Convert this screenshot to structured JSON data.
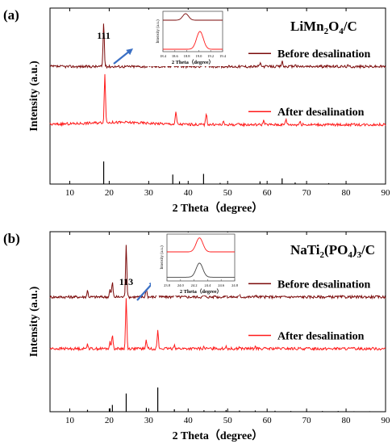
{
  "chart_data": [
    {
      "type": "line",
      "panel_label": "(a)",
      "title": "LiMn2O4/C",
      "title_parts": [
        [
          "LiMn",
          false
        ],
        [
          "2",
          true
        ],
        [
          "O",
          false
        ],
        [
          "4",
          true
        ],
        [
          "/C",
          false
        ]
      ],
      "xlabel": "2 Theta（degree）",
      "ylabel": "Intensity (a.u.)",
      "xlim": [
        5,
        90
      ],
      "x_ticks": [
        "10",
        "20",
        "30",
        "40",
        "50",
        "60",
        "70",
        "80",
        "90"
      ],
      "peak_annotation": {
        "x": 18.6,
        "text": "111"
      },
      "series": [
        {
          "name": "Before desalination",
          "color": "#7b0a0a",
          "baseline": 0.62,
          "scale": 0.3,
          "peaks": [
            [
              18.6,
              1.0
            ],
            [
              36.1,
              0.22
            ],
            [
              37.8,
              0.08
            ],
            [
              43.9,
              0.22
            ],
            [
              48.1,
              0.04
            ],
            [
              58.2,
              0.08
            ],
            [
              63.8,
              0.12
            ],
            [
              67.1,
              0.05
            ],
            [
              75.6,
              0.03
            ],
            [
              80.4,
              0.02
            ]
          ]
        },
        {
          "name": "After desalination",
          "color": "#ff1a1a",
          "baseline": 0.22,
          "scale": 0.34,
          "peaks": [
            [
              18.9,
              1.0
            ],
            [
              36.9,
              0.25
            ],
            [
              44.6,
              0.24
            ],
            [
              48.9,
              0.05
            ],
            [
              59.1,
              0.09
            ],
            [
              64.8,
              0.12
            ],
            [
              68.3,
              0.06
            ]
          ]
        }
      ],
      "reference_sticks": [
        [
          18.6,
          1.0
        ],
        [
          36.1,
          0.42
        ],
        [
          37.8,
          0.12
        ],
        [
          43.9,
          0.45
        ],
        [
          48.1,
          0.05
        ],
        [
          58.2,
          0.12
        ],
        [
          63.8,
          0.25
        ],
        [
          67.1,
          0.07
        ],
        [
          75.6,
          0.04
        ]
      ],
      "inset": {
        "ylabel": "Intensity (a.u.)",
        "xlim": [
          18.4,
          19.4
        ],
        "x_ticks": [
          "18.4",
          "18.6",
          "18.8",
          "19.0",
          "19.2",
          "19.4"
        ],
        "series": [
          {
            "color": "#7b0a0a",
            "center": 18.78,
            "width": 0.07,
            "baseline": 0.78,
            "scale": 0.16
          },
          {
            "color": "#ff1a1a",
            "center": 19.02,
            "width": 0.08,
            "baseline": 0.06,
            "scale": 0.44
          }
        ]
      }
    },
    {
      "type": "line",
      "panel_label": "(b)",
      "title": "NaTi2(PO4)3/C",
      "title_parts": [
        [
          "NaTi",
          false
        ],
        [
          "2",
          true
        ],
        [
          "(PO",
          false
        ],
        [
          "4",
          true
        ],
        [
          ")",
          false
        ],
        [
          "3",
          true
        ],
        [
          "/C",
          false
        ]
      ],
      "xlabel": "2 Theta（degree）",
      "ylabel": "Intensity (a.u.)",
      "xlim": [
        5,
        90
      ],
      "x_ticks": [
        "10",
        "20",
        "30",
        "40",
        "50",
        "60",
        "70",
        "80",
        "90"
      ],
      "peak_annotation": {
        "x": 24.3,
        "text": "113"
      },
      "series": [
        {
          "name": "Before desalination",
          "color": "#7b0a0a",
          "baseline": 0.58,
          "scale": 0.36,
          "peaks": [
            [
              14.5,
              0.12
            ],
            [
              20.2,
              0.14
            ],
            [
              20.8,
              0.28
            ],
            [
              24.3,
              1.0
            ],
            [
              29.4,
              0.16
            ],
            [
              32.3,
              0.34
            ],
            [
              36.5,
              0.08
            ],
            [
              44.0,
              0.03
            ],
            [
              46.8,
              0.04
            ],
            [
              49.6,
              0.05
            ],
            [
              53.0,
              0.03
            ],
            [
              57.0,
              0.04
            ]
          ]
        },
        {
          "name": "After desalination",
          "color": "#ff1a1a",
          "baseline": 0.23,
          "scale": 0.36,
          "peaks": [
            [
              14.5,
              0.1
            ],
            [
              20.2,
              0.12
            ],
            [
              20.8,
              0.28
            ],
            [
              24.3,
              0.95
            ],
            [
              29.4,
              0.16
            ],
            [
              32.3,
              0.34
            ],
            [
              36.5,
              0.08
            ],
            [
              44.0,
              0.03
            ],
            [
              46.8,
              0.04
            ],
            [
              49.6,
              0.05
            ],
            [
              53.0,
              0.03
            ],
            [
              57.0,
              0.04
            ]
          ]
        }
      ],
      "reference_sticks": [
        [
          14.5,
          0.08
        ],
        [
          20.2,
          0.14
        ],
        [
          20.8,
          0.28
        ],
        [
          24.3,
          0.75
        ],
        [
          29.4,
          0.16
        ],
        [
          32.3,
          1.0
        ],
        [
          36.5,
          0.1
        ],
        [
          44.0,
          0.06
        ],
        [
          46.8,
          0.05
        ],
        [
          49.6,
          0.07
        ],
        [
          53.0,
          0.05
        ],
        [
          57.0,
          0.05
        ],
        [
          62.0,
          0.04
        ],
        [
          66.0,
          0.03
        ],
        [
          70.0,
          0.03
        ],
        [
          74.0,
          0.03
        ],
        [
          78.0,
          0.03
        ],
        [
          82.0,
          0.02
        ],
        [
          86.0,
          0.02
        ]
      ],
      "inset": {
        "ylabel": "Intensity (a.u.)",
        "xlim": [
          23.8,
          24.8
        ],
        "x_ticks": [
          "23.8",
          "24.0",
          "24.2",
          "24.4",
          "24.6",
          "24.8"
        ],
        "series": [
          {
            "color": "#ff1a1a",
            "center": 24.28,
            "width": 0.07,
            "baseline": 0.62,
            "scale": 0.3
          },
          {
            "color": "#444444",
            "center": 24.28,
            "width": 0.07,
            "baseline": 0.08,
            "scale": 0.3
          }
        ]
      }
    }
  ]
}
